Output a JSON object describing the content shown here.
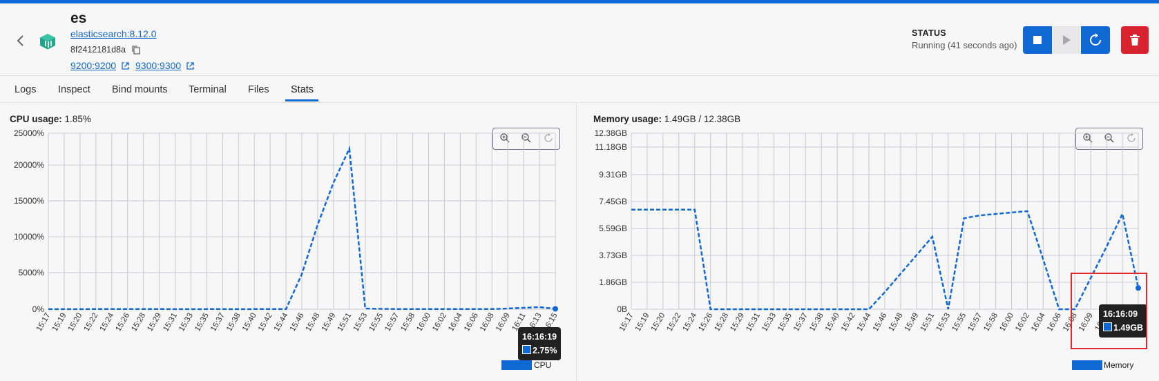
{
  "container": {
    "name": "es",
    "image": "elasticsearch:8.12.0",
    "id": "8f2412181d8a",
    "ports": [
      "9200:9200",
      "9300:9300"
    ]
  },
  "status": {
    "label": "STATUS",
    "text": "Running (41 seconds ago)"
  },
  "tabs": [
    {
      "label": "Logs"
    },
    {
      "label": "Inspect"
    },
    {
      "label": "Bind mounts"
    },
    {
      "label": "Terminal"
    },
    {
      "label": "Files"
    },
    {
      "label": "Stats",
      "active": true
    }
  ],
  "colors": {
    "accent": "#1068d4",
    "danger": "#d8232f",
    "highlight": "#e0262f"
  },
  "cpu": {
    "label": "CPU usage:",
    "value": "1.85%",
    "legend": "CPU",
    "tooltip": {
      "time": "16:16:19",
      "value": "2.75%"
    }
  },
  "memory": {
    "label": "Memory usage:",
    "value": "1.49GB / 12.38GB",
    "legend": "Memory",
    "tooltip": {
      "time": "16:16:09",
      "value": "1.49GB"
    }
  },
  "chart_data": [
    {
      "type": "line",
      "name": "cpu",
      "x": [
        "15:17",
        "15:19",
        "15:20",
        "15:22",
        "15:24",
        "15:26",
        "15:28",
        "15:29",
        "15:31",
        "15:33",
        "15:35",
        "15:37",
        "15:38",
        "15:40",
        "15:42",
        "15:44",
        "15:46",
        "15:48",
        "15:49",
        "15:51",
        "15:53",
        "15:55",
        "15:57",
        "15:58",
        "16:00",
        "16:02",
        "16:04",
        "16:06",
        "16:08",
        "16:09",
        "16:11",
        "16:13",
        "16:15"
      ],
      "y_ticks": [
        "0%",
        "5000%",
        "10000%",
        "15000%",
        "20000%",
        "25000%"
      ],
      "ylim": [
        0,
        25000
      ],
      "series": [
        {
          "name": "CPU",
          "values": [
            5,
            5,
            5,
            30,
            30,
            30,
            30,
            30,
            5,
            5,
            20,
            20,
            5,
            20,
            20,
            20,
            5000,
            12000,
            18000,
            22800,
            100,
            50,
            30,
            30,
            20,
            20,
            20,
            20,
            20,
            100,
            200,
            300,
            50
          ]
        }
      ],
      "legend": "bottom-right"
    },
    {
      "type": "line",
      "name": "memory",
      "x": [
        "15:17",
        "15:19",
        "15:20",
        "15:22",
        "15:24",
        "15:26",
        "15:28",
        "15:29",
        "15:31",
        "15:33",
        "15:35",
        "15:37",
        "15:38",
        "15:40",
        "15:42",
        "15:44",
        "15:46",
        "15:48",
        "15:49",
        "15:51",
        "15:53",
        "15:55",
        "15:57",
        "15:58",
        "16:00",
        "16:02",
        "16:04",
        "16:06",
        "16:08",
        "16:09",
        "16:11",
        "16:13",
        "16:15"
      ],
      "y_ticks": [
        "0B",
        "1.86GB",
        "3.73GB",
        "5.59GB",
        "7.45GB",
        "9.31GB",
        "11.18GB",
        "12.38GB"
      ],
      "ylim": [
        0,
        12.38
      ],
      "series": [
        {
          "name": "Memory",
          "values": [
            7.0,
            7.0,
            7.0,
            7.0,
            7.0,
            0.0,
            0.0,
            0.0,
            0.0,
            0.0,
            0.0,
            0.0,
            0.0,
            0.0,
            0.0,
            0.0,
            1.2,
            2.5,
            3.8,
            5.1,
            0.0,
            6.4,
            6.6,
            6.7,
            6.8,
            6.9,
            3.5,
            0.0,
            0.0,
            2.2,
            4.4,
            6.7,
            1.49
          ]
        }
      ],
      "legend": "bottom-right"
    }
  ]
}
